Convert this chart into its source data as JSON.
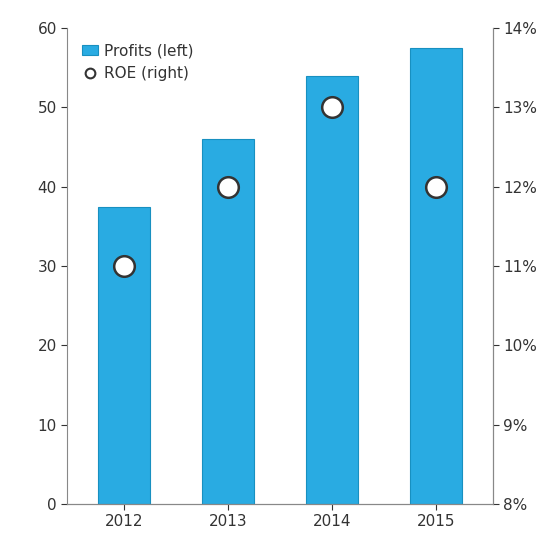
{
  "years": [
    2012,
    2013,
    2014,
    2015
  ],
  "profits": [
    37.5,
    46.0,
    54.0,
    57.5
  ],
  "roe": [
    11.0,
    12.0,
    13.0,
    12.0
  ],
  "bar_color": "#29ABE2",
  "bar_edgecolor": "#1890C0",
  "dot_facecolor": "white",
  "dot_edgecolor": "#333333",
  "ylim_left": [
    0,
    60
  ],
  "ylim_right": [
    8,
    14
  ],
  "yticks_left": [
    0,
    10,
    20,
    30,
    40,
    50,
    60
  ],
  "yticks_right": [
    8,
    9,
    10,
    11,
    12,
    13,
    14
  ],
  "ytick_labels_right": [
    "8%",
    "9%",
    "10%",
    "11%",
    "12%",
    "13%",
    "14%"
  ],
  "legend_profits_label": "Profits (left)",
  "legend_roe_label": "ROE (right)",
  "bar_width": 0.5,
  "dot_size": 220,
  "dot_linewidth": 1.8,
  "background_color": "#ffffff",
  "spine_color": "#888888",
  "tick_color": "#333333",
  "tick_fontsize": 11,
  "legend_fontsize": 11
}
